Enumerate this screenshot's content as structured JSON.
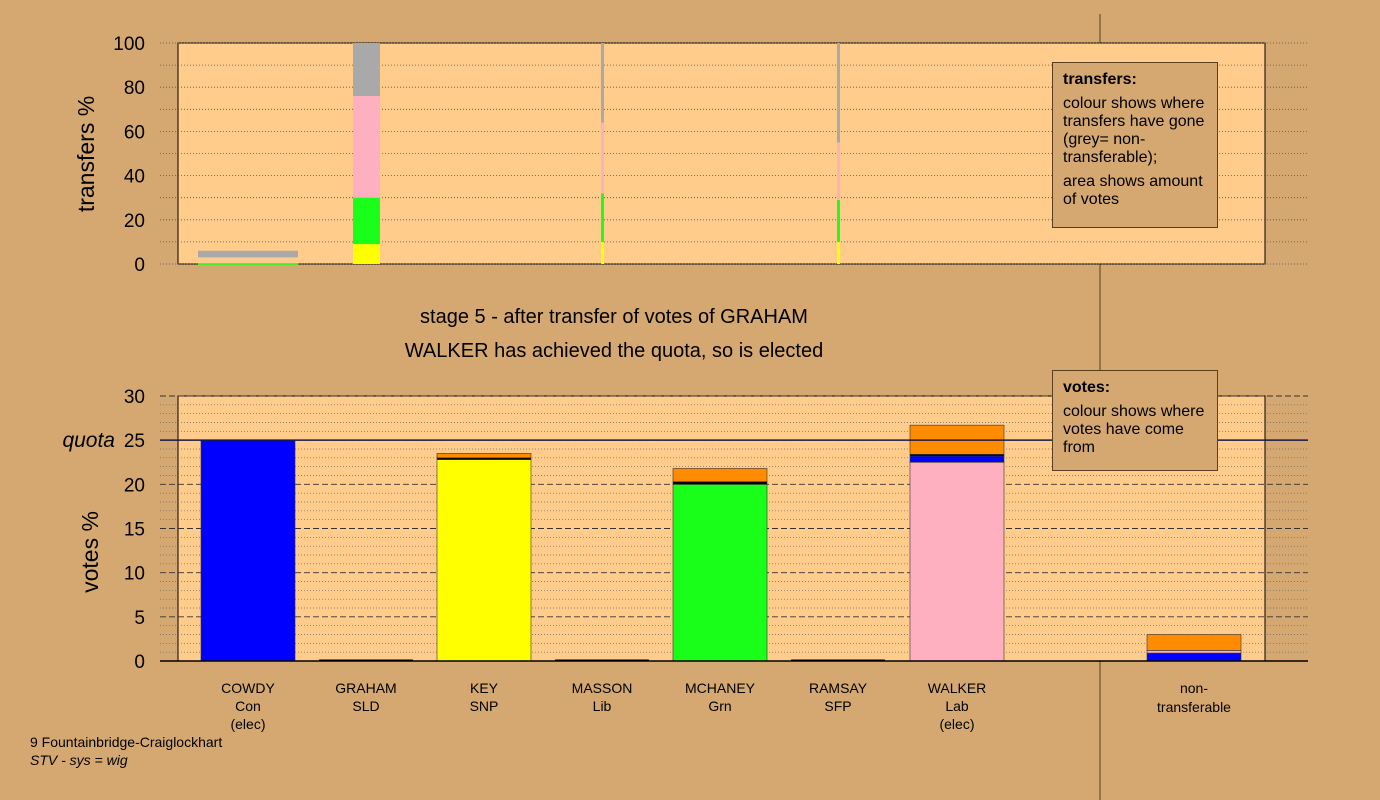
{
  "stage_title": "stage 5 - after transfer of votes of GRAHAM",
  "stage_note": "WALKER has achieved the quota, so is elected",
  "footer": {
    "ward": "9 Fountainbridge-Craiglockhart",
    "system": "STV - sys = wig"
  },
  "legends": {
    "transfers": {
      "title": "transfers:",
      "p1": "colour shows where transfers have gone (grey= non-transferable);",
      "p2": "area shows amount of votes"
    },
    "votes": {
      "title": "votes:",
      "p1": "colour shows where votes have come from"
    }
  },
  "colors": {
    "Con": "#0000ff",
    "SLD": "#ff8c00",
    "SNP": "#ffff00",
    "Lib": "#e6a000",
    "Grn": "#19ff19",
    "SFP": "#000000",
    "Lab": "#ffb0c0",
    "nontransferable": "#a9a9a9",
    "plot_bg": "#ffcc8c",
    "page_bg": "#d4a870"
  },
  "chart_data": [
    {
      "type": "bar",
      "stacked": true,
      "ylabel": "transfers %",
      "ylim": [
        0,
        100
      ],
      "yticks": [
        0,
        20,
        40,
        60,
        80,
        100
      ],
      "grid": true,
      "bars": [
        {
          "category": "GRAHAM",
          "width": "wide",
          "segments": [
            {
              "party": "SNP",
              "from": 0,
              "to": 9
            },
            {
              "party": "Grn",
              "from": 9,
              "to": 30
            },
            {
              "party": "Lab",
              "from": 30,
              "to": 76
            },
            {
              "party": "nontransferable",
              "from": 76,
              "to": 100
            }
          ]
        },
        {
          "category": "COWDY",
          "width": "surplus",
          "segments": [
            {
              "party": "nontransferable",
              "from": 3,
              "to": 6
            }
          ]
        },
        {
          "category": "MASSON",
          "width": "thin",
          "segments": [
            {
              "party": "SNP",
              "from": 0,
              "to": 10
            },
            {
              "party": "Grn",
              "from": 10,
              "to": 32
            },
            {
              "party": "Lab",
              "from": 32,
              "to": 64
            },
            {
              "party": "nontransferable",
              "from": 64,
              "to": 100
            }
          ]
        },
        {
          "category": "RAMSAY",
          "width": "thin",
          "segments": [
            {
              "party": "SNP",
              "from": 0,
              "to": 10
            },
            {
              "party": "Grn",
              "from": 10,
              "to": 29
            },
            {
              "party": "Lab",
              "from": 29,
              "to": 55
            },
            {
              "party": "nontransferable",
              "from": 55,
              "to": 100
            }
          ]
        }
      ]
    },
    {
      "type": "bar",
      "stacked": true,
      "ylabel": "votes %",
      "ylim": [
        0,
        30
      ],
      "yticks": [
        0,
        5,
        10,
        15,
        20,
        25,
        30
      ],
      "quota": 25,
      "quota_label": "quota",
      "grid": true,
      "categories": [
        {
          "name": "COWDY",
          "party": "Con",
          "note": "(elec)"
        },
        {
          "name": "GRAHAM",
          "party": "SLD",
          "note": ""
        },
        {
          "name": "KEY",
          "party": "SNP",
          "note": ""
        },
        {
          "name": "MASSON",
          "party": "Lib",
          "note": ""
        },
        {
          "name": "MCHANEY",
          "party": "Grn",
          "note": ""
        },
        {
          "name": "RAMSAY",
          "party": "SFP",
          "note": ""
        },
        {
          "name": "WALKER",
          "party": "Lab",
          "note": "(elec)"
        }
      ],
      "nontransferable_label": [
        "non-",
        "transferable"
      ],
      "stacks": [
        [
          {
            "party": "Con",
            "value": 25.0
          }
        ],
        [],
        [
          {
            "party": "SNP",
            "value": 22.8
          },
          {
            "party": "SFP",
            "value": 0.2
          },
          {
            "party": "SLD",
            "value": 0.5
          }
        ],
        [],
        [
          {
            "party": "Grn",
            "value": 20.0
          },
          {
            "party": "SFP",
            "value": 0.3
          },
          {
            "party": "SLD",
            "value": 1.5
          }
        ],
        [],
        [
          {
            "party": "Lab",
            "value": 22.5
          },
          {
            "party": "Con",
            "value": 0.7
          },
          {
            "party": "SFP",
            "value": 0.2
          },
          {
            "party": "SLD",
            "value": 3.3
          }
        ]
      ],
      "nontransferable_stack": [
        {
          "party": "Con",
          "value": 0.9
        },
        {
          "party": "Lab",
          "value": 0.3
        },
        {
          "party": "SLD",
          "value": 1.8
        }
      ]
    }
  ]
}
